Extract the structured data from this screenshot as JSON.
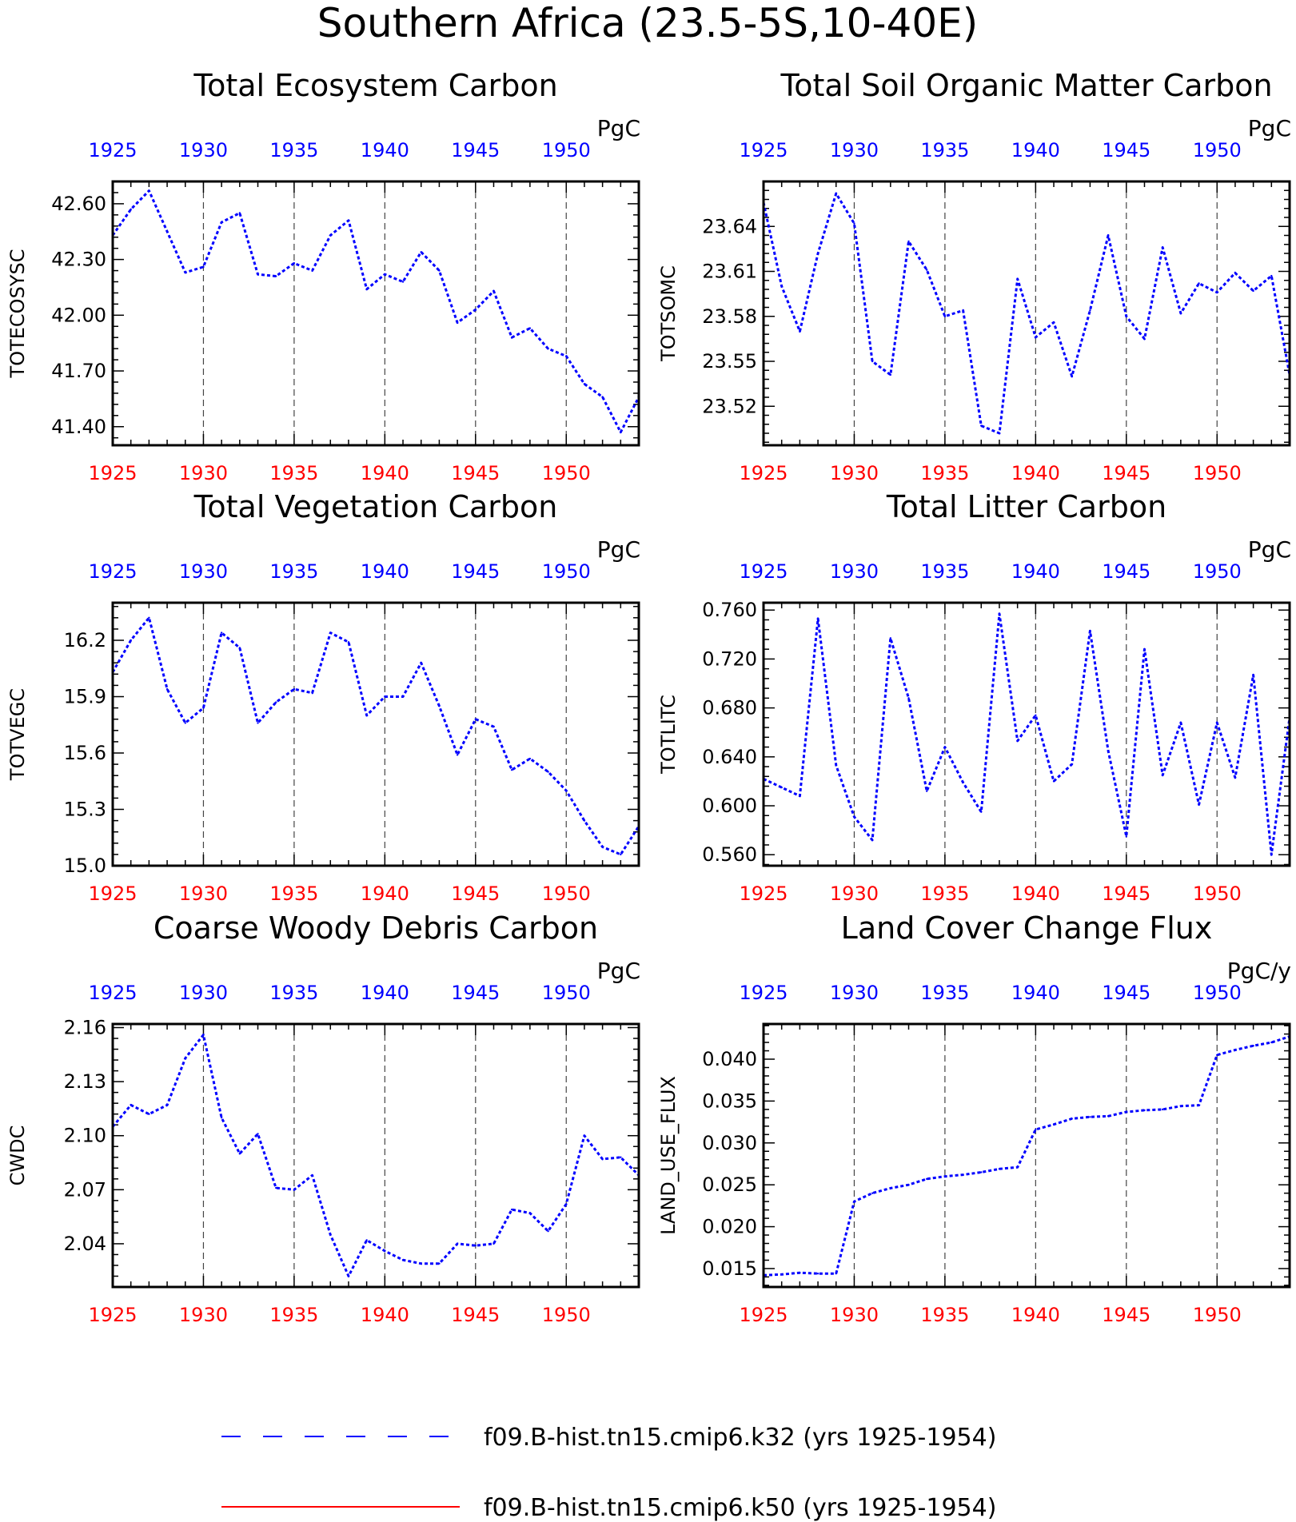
{
  "title": "Southern Africa (23.5-5S,10-40E)",
  "colors": {
    "series": "#0000ff",
    "top_axis": "#0000ff",
    "bottom_axis": "#ff0000",
    "grid": "#444444",
    "legend_line2": "#ff0000"
  },
  "legend": [
    {
      "label": "f09.B-hist.tn15.cmip6.k32 (yrs 1925-1954)",
      "style": "dashed",
      "color": "#0000ff"
    },
    {
      "label": "f09.B-hist.tn15.cmip6.k50 (yrs 1925-1954)",
      "style": "solid",
      "color": "#ff0000"
    }
  ],
  "chart_data": [
    {
      "type": "line",
      "title": "Total Ecosystem Carbon",
      "ylabel": "TOTECOSYSC",
      "units": "PgC",
      "xlim": [
        1925,
        1954
      ],
      "ylim": [
        41.3,
        42.72
      ],
      "xticks": [
        1925,
        1930,
        1935,
        1940,
        1945,
        1950
      ],
      "yticks": [
        42.6,
        42.3,
        42.0,
        41.7,
        41.4
      ],
      "ytick_labels": [
        "42.60",
        "42.30",
        "42.00",
        "41.70",
        "41.40"
      ],
      "vgrid": [
        1930,
        1935,
        1940,
        1945,
        1950
      ],
      "x": [
        1925,
        1926,
        1927,
        1928,
        1929,
        1930,
        1931,
        1932,
        1933,
        1934,
        1935,
        1936,
        1937,
        1938,
        1939,
        1940,
        1941,
        1942,
        1943,
        1944,
        1945,
        1946,
        1947,
        1948,
        1949,
        1950,
        1951,
        1952,
        1953,
        1954
      ],
      "values": [
        42.43,
        42.57,
        42.67,
        42.45,
        42.23,
        42.26,
        42.5,
        42.55,
        42.22,
        42.21,
        42.28,
        42.24,
        42.43,
        42.51,
        42.14,
        42.22,
        42.18,
        42.34,
        42.24,
        41.96,
        42.03,
        42.13,
        41.88,
        41.93,
        41.82,
        41.78,
        41.63,
        41.56,
        41.37,
        41.56
      ]
    },
    {
      "type": "line",
      "title": "Total Soil Organic Matter Carbon",
      "ylabel": "TOTSOMC",
      "units": "PgC",
      "xlim": [
        1925,
        1954
      ],
      "ylim": [
        23.494,
        23.67
      ],
      "xticks": [
        1925,
        1930,
        1935,
        1940,
        1945,
        1950
      ],
      "yticks": [
        23.64,
        23.61,
        23.58,
        23.55,
        23.52
      ],
      "ytick_labels": [
        "23.64",
        "23.61",
        "23.58",
        "23.55",
        "23.52"
      ],
      "vgrid": [
        1930,
        1935,
        1940,
        1945,
        1950
      ],
      "x": [
        1925,
        1926,
        1927,
        1928,
        1929,
        1930,
        1931,
        1932,
        1933,
        1934,
        1935,
        1936,
        1937,
        1938,
        1939,
        1940,
        1941,
        1942,
        1943,
        1944,
        1945,
        1946,
        1947,
        1948,
        1949,
        1950,
        1951,
        1952,
        1953,
        1954
      ],
      "values": [
        23.656,
        23.6,
        23.57,
        23.622,
        23.662,
        23.642,
        23.55,
        23.541,
        23.63,
        23.611,
        23.58,
        23.584,
        23.507,
        23.502,
        23.605,
        23.566,
        23.576,
        23.54,
        23.584,
        23.634,
        23.58,
        23.565,
        23.626,
        23.582,
        23.602,
        23.596,
        23.609,
        23.597,
        23.607,
        23.541
      ]
    },
    {
      "type": "line",
      "title": "Total Vegetation Carbon",
      "ylabel": "TOTVEGC",
      "units": "PgC",
      "xlim": [
        1925,
        1954
      ],
      "ylim": [
        15.0,
        16.4
      ],
      "xticks": [
        1925,
        1930,
        1935,
        1940,
        1945,
        1950
      ],
      "yticks": [
        16.2,
        15.9,
        15.6,
        15.3,
        15.0
      ],
      "ytick_labels": [
        "16.2",
        "15.9",
        "15.6",
        "15.3",
        "15.0"
      ],
      "vgrid": [
        1930,
        1935,
        1940,
        1945,
        1950
      ],
      "x": [
        1925,
        1926,
        1927,
        1928,
        1929,
        1930,
        1931,
        1932,
        1933,
        1934,
        1935,
        1936,
        1937,
        1938,
        1939,
        1940,
        1941,
        1942,
        1943,
        1944,
        1945,
        1946,
        1947,
        1948,
        1949,
        1950,
        1951,
        1952,
        1953,
        1954
      ],
      "values": [
        16.03,
        16.2,
        16.32,
        15.94,
        15.76,
        15.84,
        16.24,
        16.16,
        15.76,
        15.87,
        15.94,
        15.92,
        16.24,
        16.19,
        15.8,
        15.9,
        15.9,
        16.08,
        15.85,
        15.59,
        15.78,
        15.74,
        15.51,
        15.57,
        15.5,
        15.4,
        15.24,
        15.1,
        15.06,
        15.21
      ]
    },
    {
      "type": "line",
      "title": "Total Litter Carbon",
      "ylabel": "TOTLITC",
      "units": "PgC",
      "xlim": [
        1925,
        1954
      ],
      "ylim": [
        0.551,
        0.766
      ],
      "xticks": [
        1925,
        1930,
        1935,
        1940,
        1945,
        1950
      ],
      "yticks": [
        0.76,
        0.72,
        0.68,
        0.64,
        0.6,
        0.56
      ],
      "ytick_labels": [
        "0.760",
        "0.720",
        "0.680",
        "0.640",
        "0.600",
        "0.560"
      ],
      "vgrid": [
        1930,
        1935,
        1940,
        1945,
        1950
      ],
      "x": [
        1925,
        1926,
        1927,
        1928,
        1929,
        1930,
        1931,
        1932,
        1933,
        1934,
        1935,
        1936,
        1937,
        1938,
        1939,
        1940,
        1941,
        1942,
        1943,
        1944,
        1945,
        1946,
        1947,
        1948,
        1949,
        1950,
        1951,
        1952,
        1953,
        1954
      ],
      "values": [
        0.622,
        0.615,
        0.608,
        0.753,
        0.633,
        0.591,
        0.572,
        0.737,
        0.688,
        0.612,
        0.648,
        0.619,
        0.595,
        0.757,
        0.653,
        0.674,
        0.62,
        0.634,
        0.743,
        0.645,
        0.575,
        0.728,
        0.625,
        0.668,
        0.601,
        0.668,
        0.623,
        0.707,
        0.56,
        0.672
      ]
    },
    {
      "type": "line",
      "title": "Coarse Woody Debris Carbon",
      "ylabel": "CWDC",
      "units": "PgC",
      "xlim": [
        1925,
        1954
      ],
      "ylim": [
        2.016,
        2.162
      ],
      "xticks": [
        1925,
        1930,
        1935,
        1940,
        1945,
        1950
      ],
      "yticks": [
        2.16,
        2.13,
        2.1,
        2.07,
        2.04
      ],
      "ytick_labels": [
        "2.16",
        "2.13",
        "2.10",
        "2.07",
        "2.04"
      ],
      "vgrid": [
        1930,
        1935,
        1940,
        1945,
        1950
      ],
      "x": [
        1925,
        1926,
        1927,
        1928,
        1929,
        1930,
        1931,
        1932,
        1933,
        1934,
        1935,
        1936,
        1937,
        1938,
        1939,
        1940,
        1941,
        1942,
        1943,
        1944,
        1945,
        1946,
        1947,
        1948,
        1949,
        1950,
        1951,
        1952,
        1953,
        1954
      ],
      "values": [
        2.105,
        2.117,
        2.112,
        2.117,
        2.143,
        2.156,
        2.11,
        2.09,
        2.101,
        2.071,
        2.07,
        2.078,
        2.045,
        2.022,
        2.042,
        2.036,
        2.031,
        2.029,
        2.029,
        2.04,
        2.039,
        2.04,
        2.059,
        2.057,
        2.047,
        2.062,
        2.1,
        2.087,
        2.088,
        2.078
      ]
    },
    {
      "type": "line",
      "title": "Land Cover Change Flux",
      "ylabel": "LAND_USE_FLUX",
      "units": "PgC/y",
      "xlim": [
        1925,
        1954
      ],
      "ylim": [
        0.0128,
        0.0442
      ],
      "xticks": [
        1925,
        1930,
        1935,
        1940,
        1945,
        1950
      ],
      "yticks": [
        0.04,
        0.035,
        0.03,
        0.025,
        0.02,
        0.015
      ],
      "ytick_labels": [
        "0.040",
        "0.035",
        "0.030",
        "0.025",
        "0.020",
        "0.015"
      ],
      "vgrid": [
        1930,
        1935,
        1940,
        1945,
        1950
      ],
      "x": [
        1925,
        1926,
        1927,
        1928,
        1929,
        1930,
        1931,
        1932,
        1933,
        1934,
        1935,
        1936,
        1937,
        1938,
        1939,
        1940,
        1941,
        1942,
        1943,
        1944,
        1945,
        1946,
        1947,
        1948,
        1949,
        1950,
        1951,
        1952,
        1953,
        1954
      ],
      "values": [
        0.0142,
        0.0143,
        0.0145,
        0.0144,
        0.0144,
        0.023,
        0.024,
        0.0246,
        0.025,
        0.0257,
        0.026,
        0.0262,
        0.0265,
        0.0269,
        0.0271,
        0.0316,
        0.0322,
        0.0329,
        0.0331,
        0.0332,
        0.0337,
        0.0339,
        0.034,
        0.0344,
        0.0345,
        0.0405,
        0.0411,
        0.0416,
        0.042,
        0.0427
      ]
    }
  ]
}
